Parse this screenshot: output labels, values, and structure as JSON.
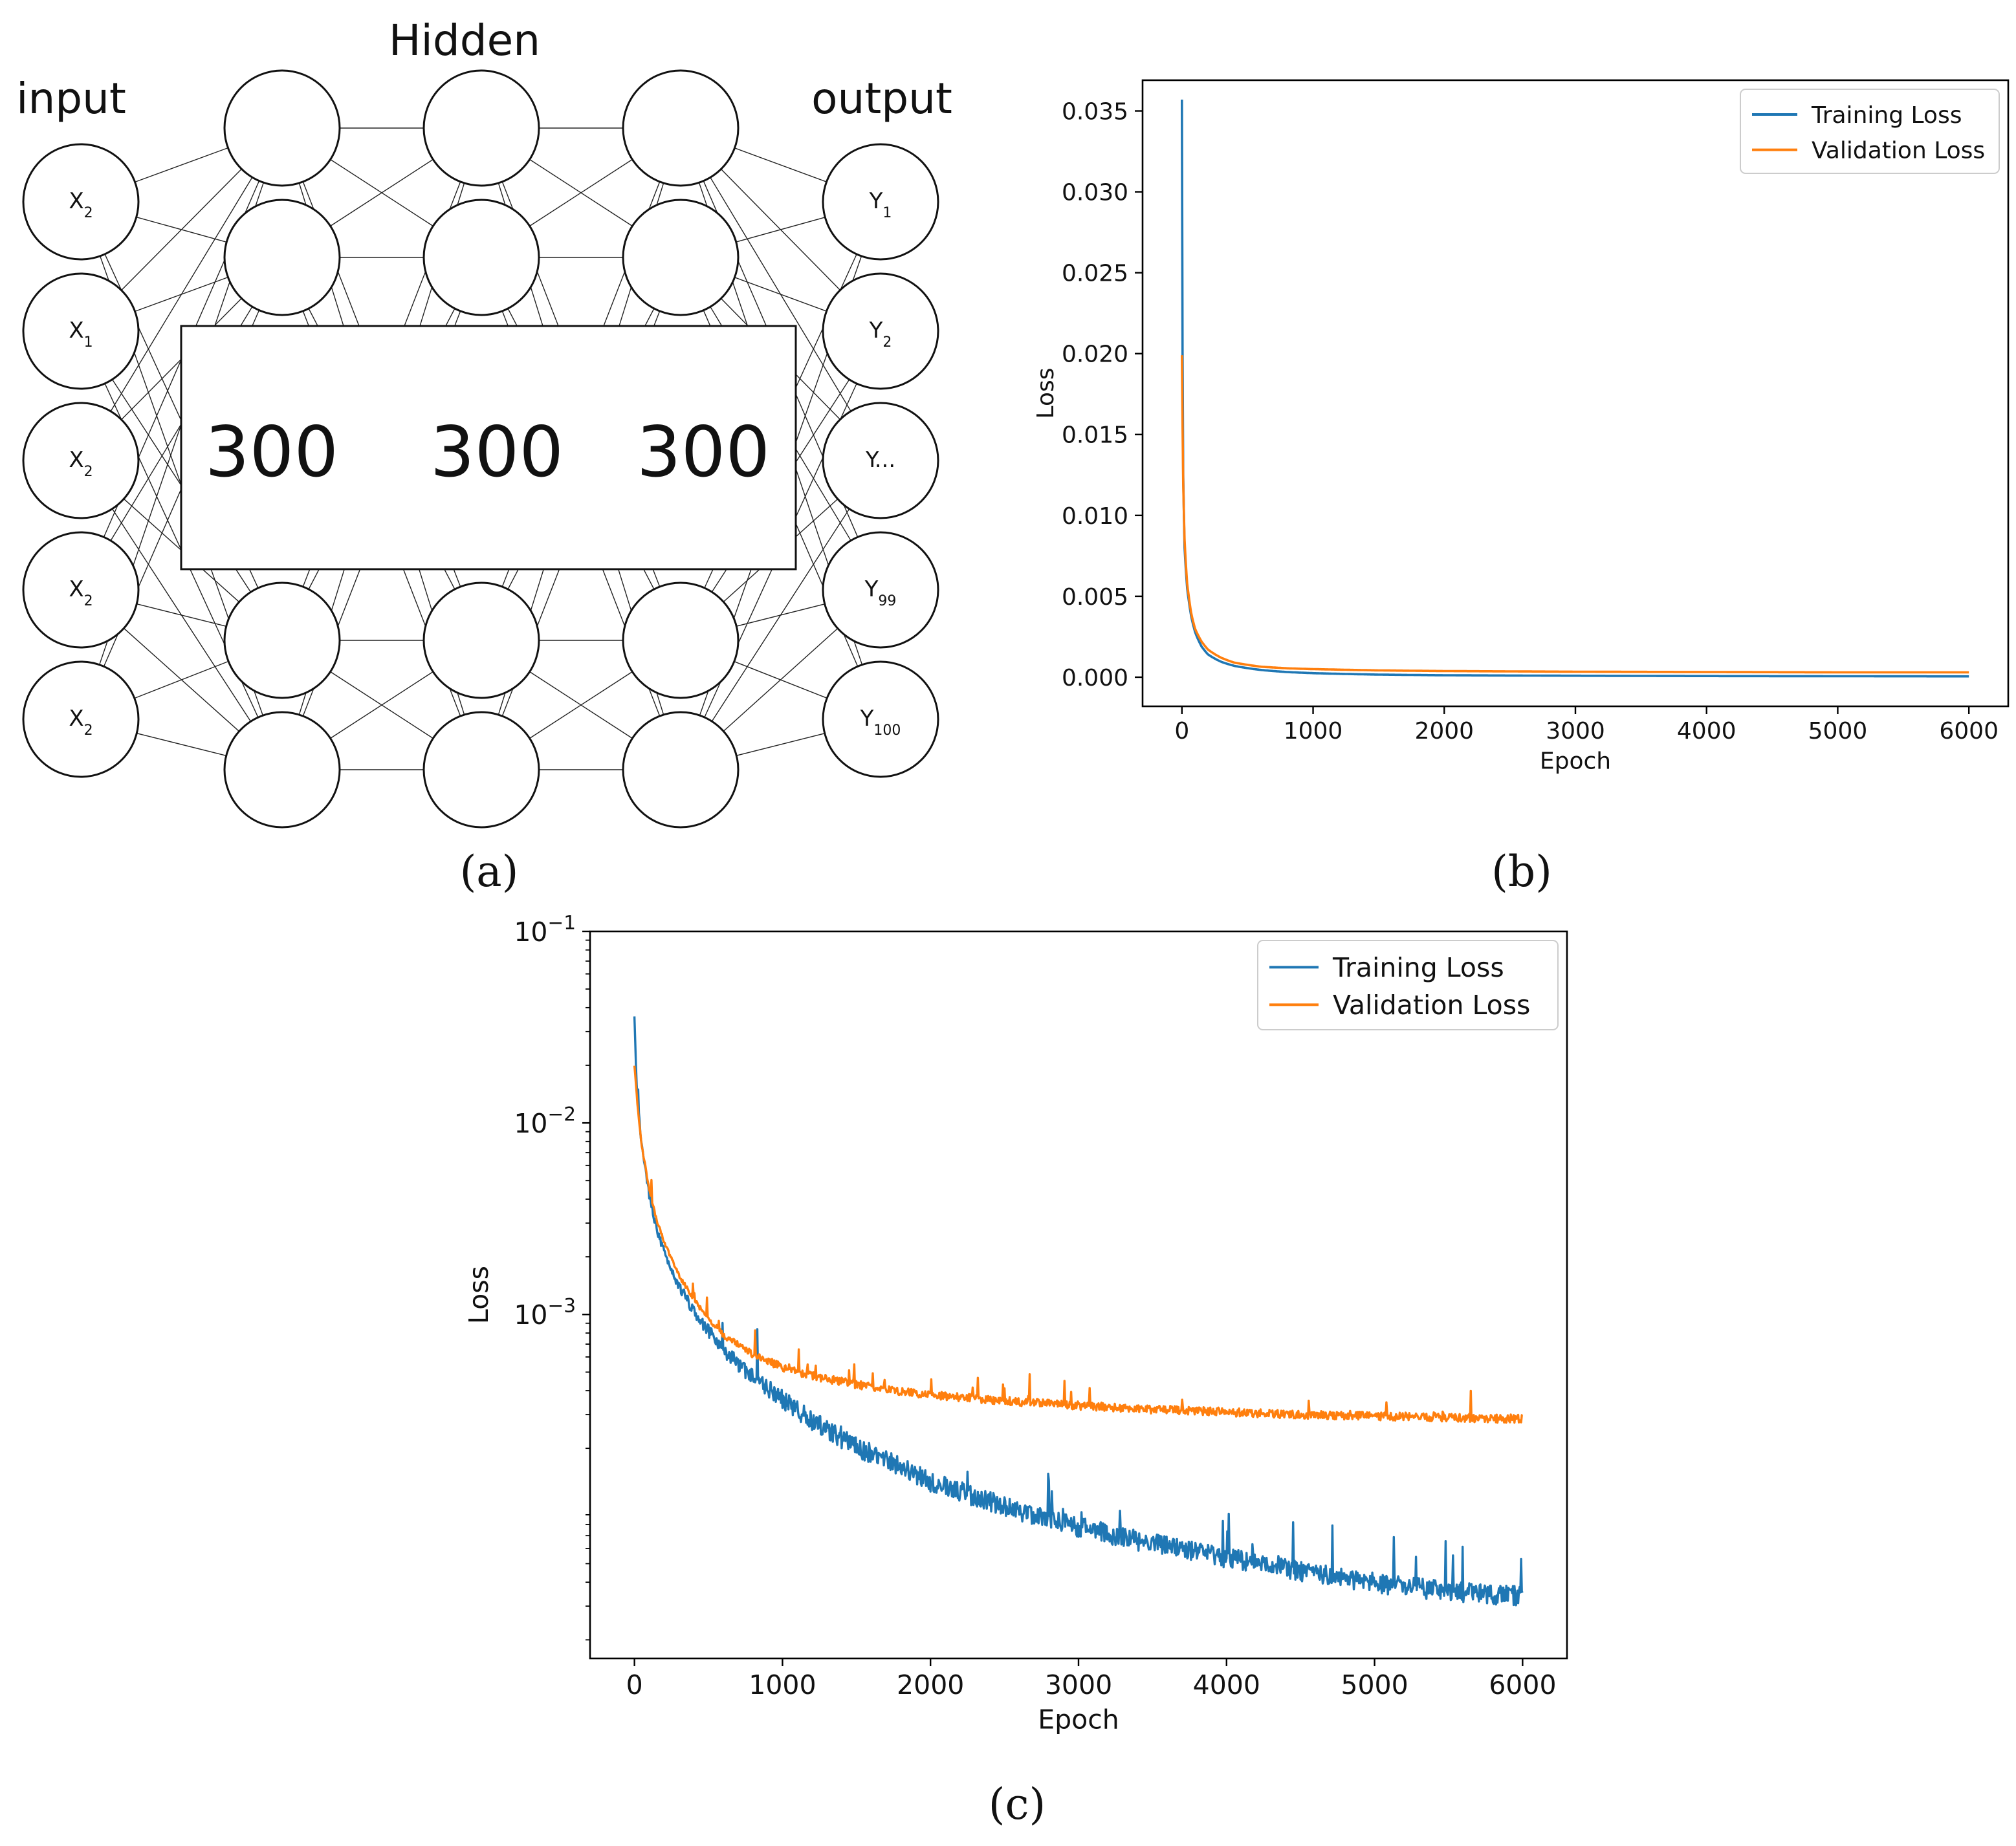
{
  "diagram": {
    "title_hidden": "Hidden",
    "title_input": "input",
    "title_output": "output",
    "layer_sizes": [
      "300",
      "300",
      "300"
    ],
    "input_nodes": [
      {
        "base": "X",
        "sub": "2"
      },
      {
        "base": "X",
        "sub": "1"
      },
      {
        "base": "X",
        "sub": "2"
      },
      {
        "base": "X",
        "sub": "2"
      },
      {
        "base": "X",
        "sub": "2"
      }
    ],
    "output_nodes": [
      {
        "base": "Y",
        "sub": "1"
      },
      {
        "base": "Y",
        "sub": "2"
      },
      {
        "base": "Y...",
        "sub": ""
      },
      {
        "base": "Y",
        "sub": "99"
      },
      {
        "base": "Y",
        "sub": "100"
      }
    ]
  },
  "panel_labels": {
    "a": "(a)",
    "b": "(b)",
    "c": "(c)"
  },
  "colors": {
    "training": "#1f77b4",
    "validation": "#ff7f0e",
    "axis": "#000000"
  },
  "chart_data": [
    {
      "id": "b",
      "type": "line",
      "title": "",
      "xlabel": "Epoch",
      "ylabel": "Loss",
      "yscale": "linear",
      "xlim": [
        -300,
        6300
      ],
      "ylim": [
        -0.0018,
        0.0369
      ],
      "xticks": [
        0,
        1000,
        2000,
        3000,
        4000,
        5000,
        6000
      ],
      "xtick_labels": [
        "0",
        "1000",
        "2000",
        "3000",
        "4000",
        "5000",
        "6000"
      ],
      "yticks": [
        0,
        0.005,
        0.01,
        0.015,
        0.02,
        0.025,
        0.03,
        0.035
      ],
      "ytick_labels": [
        "0.000",
        "0.005",
        "0.010",
        "0.015",
        "0.020",
        "0.025",
        "0.030",
        "0.035"
      ],
      "legend_position": "top-right",
      "series": [
        {
          "name": "Training Loss",
          "color_key": "training",
          "x": [
            0,
            5,
            10,
            20,
            40,
            70,
            100,
            150,
            200,
            300,
            400,
            600,
            800,
            1000,
            1500,
            2000,
            3000,
            4000,
            5000,
            6000
          ],
          "y": [
            0.0357,
            0.02,
            0.0125,
            0.008,
            0.0055,
            0.0038,
            0.0028,
            0.0019,
            0.0014,
            0.00095,
            0.0007,
            0.00045,
            0.00032,
            0.00025,
            0.00016,
            0.00012,
            9e-05,
            7e-05,
            6e-05,
            5e-05
          ]
        },
        {
          "name": "Validation Loss",
          "color_key": "validation",
          "x": [
            0,
            5,
            10,
            20,
            40,
            70,
            100,
            150,
            200,
            300,
            400,
            600,
            800,
            1000,
            1500,
            2000,
            3000,
            4000,
            5000,
            6000
          ],
          "y": [
            0.0199,
            0.0155,
            0.012,
            0.0085,
            0.0058,
            0.004,
            0.003,
            0.0022,
            0.0017,
            0.0012,
            0.0009,
            0.00065,
            0.00055,
            0.0005,
            0.00042,
            0.00038,
            0.00034,
            0.00032,
            0.0003,
            0.0003
          ]
        }
      ]
    },
    {
      "id": "c",
      "type": "line",
      "title": "",
      "xlabel": "Epoch",
      "ylabel": "Loss",
      "yscale": "log",
      "xlim": [
        -300,
        6300
      ],
      "ylim": [
        1.6e-05,
        0.1
      ],
      "xticks": [
        0,
        1000,
        2000,
        3000,
        4000,
        5000,
        6000
      ],
      "xtick_labels": [
        "0",
        "1000",
        "2000",
        "3000",
        "4000",
        "5000",
        "6000"
      ],
      "yticks": [
        0.1,
        0.01,
        0.001
      ],
      "ytick_labels": [
        {
          "base": "10",
          "exp": "−1"
        },
        {
          "base": "10",
          "exp": "−2"
        },
        {
          "base": "10",
          "exp": "−3"
        }
      ],
      "legend_position": "top-right",
      "series": [
        {
          "name": "Training Loss",
          "color_key": "training",
          "x": [
            0,
            10,
            20,
            50,
            100,
            150,
            200,
            300,
            400,
            500,
            600,
            800,
            1000,
            1200,
            1500,
            2000,
            2500,
            3000,
            3500,
            4000,
            4500,
            5000,
            5500,
            6000
          ],
          "y": [
            0.036,
            0.02,
            0.0135,
            0.0075,
            0.0042,
            0.0028,
            0.0021,
            0.0014,
            0.00105,
            0.00082,
            0.00066,
            0.00047,
            0.00036,
            0.00028,
            0.000205,
            0.000135,
            0.0001,
            7.8e-05,
            6.4e-05,
            5.4e-05,
            4.6e-05,
            4e-05,
            3.6e-05,
            3.4e-05
          ],
          "noise": 0.12
        },
        {
          "name": "Validation Loss",
          "color_key": "validation",
          "x": [
            0,
            10,
            20,
            50,
            100,
            150,
            200,
            300,
            400,
            500,
            600,
            800,
            1000,
            1200,
            1500,
            2000,
            2500,
            3000,
            3500,
            4000,
            4500,
            5000,
            5500,
            6000
          ],
          "y": [
            0.0199,
            0.016,
            0.0125,
            0.0075,
            0.0045,
            0.0031,
            0.0024,
            0.0016,
            0.0012,
            0.00095,
            0.00078,
            0.00062,
            0.00053,
            0.00048,
            0.00043,
            0.00038,
            0.000355,
            0.000335,
            0.00032,
            0.00031,
            0.0003,
            0.000295,
            0.00029,
            0.000285
          ],
          "noise": 0.05
        }
      ]
    }
  ]
}
